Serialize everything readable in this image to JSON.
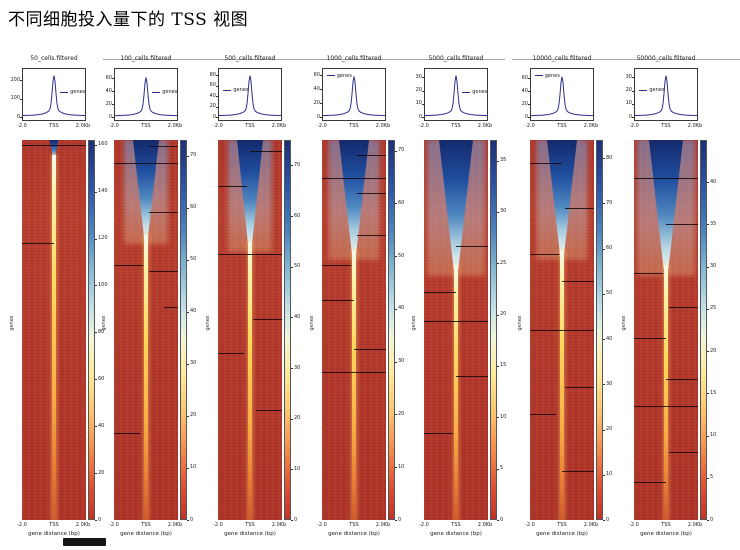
{
  "page": {
    "title": "不同细胞投入量下的 TSS 视图"
  },
  "chart_data": {
    "type": "heatmap",
    "description": "deeptools-style TSS enrichment profiles and heatmaps for 7 cell-input amounts; each panel: mean profile over TSS ±2kb, gene×position heatmap (RdYlBu, blue=high), and colorbar",
    "shared": {
      "xticks": [
        "-2.0",
        "TSS",
        "2.0Kb"
      ],
      "xlabel": "gene distance (bp)",
      "ylabel": "genes",
      "legend_label": "genes",
      "colormap": "RdYlBu",
      "colors": {
        "line": "#2e2e8f",
        "heat_low": "#b5392e",
        "heat_high": "#14296b"
      }
    },
    "panels": [
      {
        "title": "50_cells.filtered",
        "profile": {
          "yticks": [
            0,
            100,
            200
          ],
          "ymax": 245,
          "peak": 232
        },
        "legend_pos": "right",
        "colorbar": {
          "ticks": [
            0,
            20,
            40,
            60,
            80,
            100,
            120,
            140,
            160
          ],
          "vmin": 0,
          "vmax": 162
        },
        "heatmap": {
          "funnel": 0.05,
          "funnel_width": 9,
          "streaks": [
            [
              0.012,
              0,
              1
            ],
            [
              0.27,
              0,
              0.5
            ]
          ]
        }
      },
      {
        "title": "100_cells.filtered",
        "profile": {
          "yticks": [
            0,
            20,
            40,
            60
          ],
          "ymax": 70,
          "peak": 63
        },
        "legend_pos": "right",
        "colorbar": {
          "ticks": [
            0,
            10,
            20,
            30,
            40,
            50,
            60,
            70
          ],
          "vmin": 0,
          "vmax": 73
        },
        "heatmap": {
          "funnel": 0.26,
          "funnel_width": 26,
          "streaks": [
            [
              0.015,
              0.55,
              0.45
            ],
            [
              0.06,
              0,
              1
            ],
            [
              0.19,
              0.55,
              0.45
            ],
            [
              0.33,
              0,
              0.45
            ],
            [
              0.345,
              0.55,
              0.45
            ],
            [
              0.44,
              0.78,
              0.22
            ],
            [
              0.77,
              0,
              0.4
            ]
          ]
        }
      },
      {
        "title": "500_cells.filtered",
        "profile": {
          "yticks": [
            0,
            20,
            40,
            60,
            80
          ],
          "ymax": 86,
          "peak": 81
        },
        "legend_pos": "left",
        "colorbar": {
          "ticks": [
            0,
            10,
            20,
            30,
            40,
            50,
            60,
            70
          ],
          "vmin": 0,
          "vmax": 75
        },
        "heatmap": {
          "funnel": 0.28,
          "funnel_width": 26,
          "streaks": [
            [
              0.03,
              0.5,
              0.5
            ],
            [
              0.12,
              0,
              0.45
            ],
            [
              0.3,
              0,
              1
            ],
            [
              0.47,
              0.55,
              0.45
            ],
            [
              0.56,
              0,
              0.4
            ],
            [
              0.71,
              0.6,
              0.4
            ]
          ]
        }
      },
      {
        "title": "1000_cells.filtered",
        "profile": {
          "yticks": [
            0,
            20,
            40,
            60
          ],
          "ymax": 65,
          "peak": 60
        },
        "legend_pos": "top-left",
        "colorbar": {
          "ticks": [
            0,
            10,
            20,
            30,
            40,
            50,
            60,
            70
          ],
          "vmin": 0,
          "vmax": 72
        },
        "heatmap": {
          "funnel": 0.3,
          "funnel_width": 30,
          "streaks": [
            [
              0.04,
              0.55,
              0.45
            ],
            [
              0.1,
              0,
              1
            ],
            [
              0.14,
              0.55,
              0.45
            ],
            [
              0.25,
              0.55,
              0.45
            ],
            [
              0.33,
              0,
              0.45
            ],
            [
              0.42,
              0,
              0.5
            ],
            [
              0.55,
              0.5,
              0.5
            ],
            [
              0.61,
              0,
              1
            ]
          ]
        }
      },
      {
        "title": "5000_cells.filtered",
        "profile": {
          "yticks": [
            0,
            10,
            20,
            30
          ],
          "ymax": 34,
          "peak": 32
        },
        "legend_pos": "right",
        "colorbar": {
          "ticks": [
            0,
            5,
            10,
            15,
            20,
            25,
            30,
            35
          ],
          "vmin": 0,
          "vmax": 37
        },
        "heatmap": {
          "funnel": 0.34,
          "funnel_width": 34,
          "streaks": [
            [
              0.28,
              0.5,
              0.5
            ],
            [
              0.4,
              0,
              0.5
            ],
            [
              0.475,
              0,
              1
            ],
            [
              0.62,
              0.5,
              0.5
            ],
            [
              0.77,
              0,
              0.45
            ]
          ]
        }
      },
      {
        "title": "10000_cells.filtered",
        "profile": {
          "yticks": [
            0,
            20,
            40,
            60
          ],
          "ymax": 70,
          "peak": 64
        },
        "legend_pos": "top-left",
        "colorbar": {
          "ticks": [
            0,
            10,
            20,
            30,
            40,
            50,
            60,
            70,
            80
          ],
          "vmin": 0,
          "vmax": 84
        },
        "heatmap": {
          "funnel": 0.3,
          "funnel_width": 30,
          "streaks": [
            [
              0.06,
              0,
              0.5
            ],
            [
              0.18,
              0.55,
              0.45
            ],
            [
              0.3,
              0,
              0.45
            ],
            [
              0.37,
              0.5,
              0.5
            ],
            [
              0.5,
              0,
              1
            ],
            [
              0.65,
              0.55,
              0.45
            ],
            [
              0.72,
              0,
              0.4
            ],
            [
              0.87,
              0.5,
              0.5
            ]
          ]
        }
      },
      {
        "title": "50000_cells.filtered",
        "profile": {
          "yticks": [
            0,
            10,
            20,
            30
          ],
          "ymax": 34,
          "peak": 32
        },
        "legend_pos": "left",
        "colorbar": {
          "ticks": [
            0,
            5,
            10,
            15,
            20,
            25,
            30,
            35,
            40
          ],
          "vmin": 0,
          "vmax": 45
        },
        "heatmap": {
          "funnel": 0.34,
          "funnel_width": 34,
          "streaks": [
            [
              0.1,
              0,
              1
            ],
            [
              0.22,
              0.5,
              0.5
            ],
            [
              0.35,
              0,
              0.45
            ],
            [
              0.44,
              0.55,
              0.45
            ],
            [
              0.52,
              0,
              0.5
            ],
            [
              0.63,
              0.5,
              0.5
            ],
            [
              0.7,
              0,
              1
            ],
            [
              0.82,
              0.55,
              0.45
            ],
            [
              0.9,
              0,
              0.5
            ]
          ]
        }
      }
    ]
  }
}
